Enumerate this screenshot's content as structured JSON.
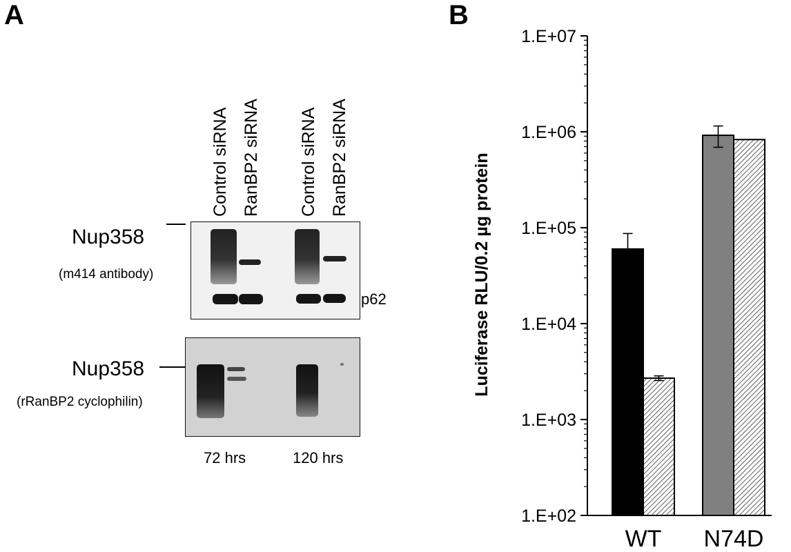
{
  "panel_a": {
    "letter": "A",
    "lanes": [
      "Control siRNA",
      "RanBP2 siRNA",
      "Control siRNA",
      "RanBP2 siRNA"
    ],
    "blot1": {
      "label": "Nup358",
      "antibody": "(m414 antibody)",
      "marker": "p62"
    },
    "blot2": {
      "label": "Nup358",
      "antibody": "(rRanBP2 cyclophilin)"
    },
    "timepoints": [
      "72 hrs",
      "120 hrs"
    ]
  },
  "panel_b": {
    "letter": "B"
  },
  "chart_data": {
    "type": "bar",
    "scale": "log",
    "ylabel": "Luciferase RLU/0.2 µg protein",
    "ylim": [
      100,
      10000000
    ],
    "yticks": [
      "1.E+02",
      "1.E+03",
      "1.E+04",
      "1.E+05",
      "1.E+06",
      "1.E+07"
    ],
    "categories": [
      "WT",
      "N74D"
    ],
    "bars": [
      {
        "category": "WT",
        "value": 60000,
        "error": 27000,
        "fill": "#000000"
      },
      {
        "category": "WT",
        "value": 2700,
        "error": 150,
        "fill": "hatch"
      },
      {
        "category": "N74D",
        "value": 920000,
        "error": 230000,
        "fill": "#808080"
      },
      {
        "category": "N74D",
        "value": 830000,
        "error": 0,
        "fill": "hatch"
      }
    ]
  }
}
